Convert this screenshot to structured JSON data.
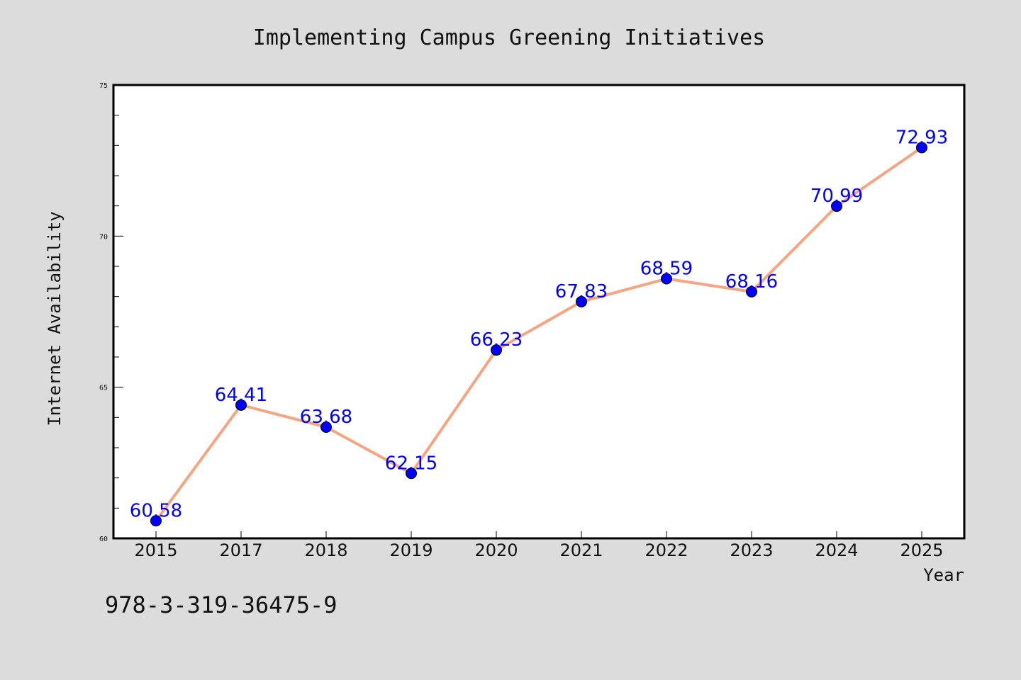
{
  "chart_data": {
    "type": "line",
    "title": "Implementing Campus Greening Initiatives",
    "xlabel": "Year",
    "ylabel": "Internet Availability",
    "categories": [
      "2015",
      "2017",
      "2018",
      "2019",
      "2020",
      "2021",
      "2022",
      "2023",
      "2024",
      "2025"
    ],
    "values": [
      60.58,
      64.41,
      63.68,
      62.15,
      66.23,
      67.83,
      68.59,
      68.16,
      70.99,
      72.93
    ],
    "data_labels": [
      "60.58",
      "64.41",
      "63.68",
      "62.15",
      "66.23",
      "67.83",
      "68.59",
      "68.16",
      "70.99",
      "72.93"
    ],
    "ylim": [
      60,
      75
    ],
    "yticks": [
      "60",
      "65",
      "70",
      "75"
    ],
    "grid": false,
    "line_color": "#f4a582",
    "marker_color": "#0000ff",
    "label_color": "#0000ff"
  },
  "footer_text": "978-3-319-36475-9"
}
